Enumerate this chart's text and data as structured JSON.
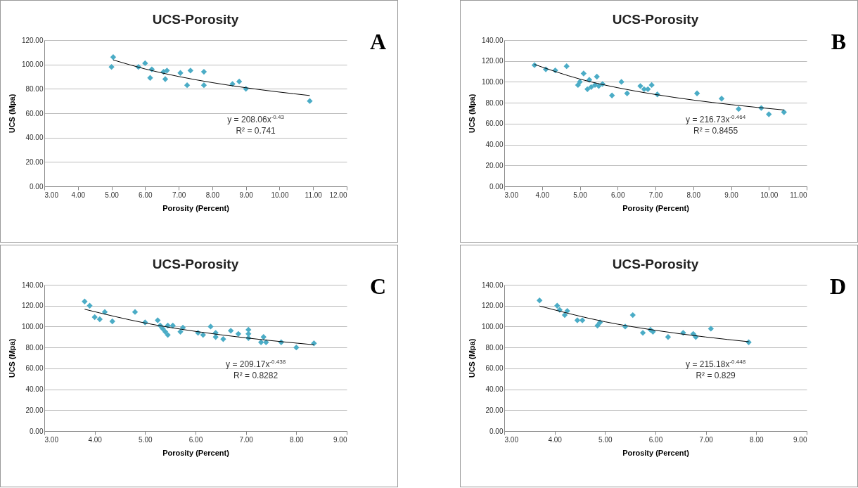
{
  "chart_data": [
    {
      "type": "scatter",
      "title": "UCS-Porosity",
      "xlabel": "Porosity (Percent)",
      "ylabel": "UCS (Mpa)",
      "grid": "y",
      "xlim": [
        3,
        12
      ],
      "xticks": [
        {
          "value": 3,
          "label": "3.00"
        },
        {
          "value": 4,
          "label": "4.00"
        },
        {
          "value": 5,
          "label": "5.00"
        },
        {
          "value": 6,
          "label": "6.00"
        },
        {
          "value": 7,
          "label": "7.00"
        },
        {
          "value": 8,
          "label": "8.00"
        },
        {
          "value": 9,
          "label": "9.00"
        },
        {
          "value": 10,
          "label": "10.00"
        },
        {
          "value": 11,
          "label": "11.00"
        },
        {
          "value": 12,
          "label": "12.00"
        }
      ],
      "ylim": [
        0,
        120
      ],
      "yticks": [
        {
          "value": 0,
          "label": "0.00"
        },
        {
          "value": 20,
          "label": "20.00"
        },
        {
          "value": 40,
          "label": "40.00"
        },
        {
          "value": 60,
          "label": "60.00"
        },
        {
          "value": 80,
          "label": "80.00"
        },
        {
          "value": 100,
          "label": "100.00"
        },
        {
          "value": 120,
          "label": "120.00"
        }
      ],
      "series": [
        {
          "marker": "diamond",
          "color": "#4bacc6",
          "x": [
            5.0,
            5.05,
            5.8,
            6.0,
            6.15,
            6.2,
            6.55,
            6.6,
            6.65,
            7.05,
            7.25,
            7.35,
            7.75,
            7.75,
            8.6,
            8.8,
            9.0,
            10.9
          ],
          "values": [
            98,
            106,
            98,
            101,
            89,
            96,
            94,
            88,
            95,
            93,
            83,
            95,
            83,
            94,
            84,
            86,
            80,
            70
          ]
        },
        {
          "type": "line",
          "color": "#000000",
          "x": [
            5.05,
            6,
            7,
            8,
            9,
            10.9
          ],
          "values": [
            103.7,
            96.3,
            90.1,
            85.1,
            80.9,
            74.5
          ]
        }
      ],
      "annotations": [
        "A",
        "y = 208.06x$^{-0.43}$",
        "R² = 0.741"
      ]
    },
    {
      "type": "scatter",
      "title": "UCS-Porosity",
      "xlabel": "Porosity (Percent)",
      "ylabel": "UCS (Mpa)",
      "grid": "y",
      "xlim": [
        3,
        11
      ],
      "xticks": [
        {
          "value": 3,
          "label": "3.00"
        },
        {
          "value": 4,
          "label": "4.00"
        },
        {
          "value": 5,
          "label": "5.00"
        },
        {
          "value": 6,
          "label": "6.00"
        },
        {
          "value": 7,
          "label": "7.00"
        },
        {
          "value": 8,
          "label": "8.00"
        },
        {
          "value": 9,
          "label": "9.00"
        },
        {
          "value": 10,
          "label": "10.00"
        },
        {
          "value": 11,
          "label": "11.00"
        }
      ],
      "ylim": [
        0,
        140
      ],
      "yticks": [
        {
          "value": 0,
          "label": "0.00"
        },
        {
          "value": 20,
          "label": "20.00"
        },
        {
          "value": 40,
          "label": "40.00"
        },
        {
          "value": 60,
          "label": "60.00"
        },
        {
          "value": 80,
          "label": "80.00"
        },
        {
          "value": 100,
          "label": "100.00"
        },
        {
          "value": 120,
          "label": "120.00"
        },
        {
          "value": 140,
          "label": "140.00"
        }
      ],
      "series": [
        {
          "marker": "diamond",
          "color": "#4bacc6",
          "x": [
            3.8,
            4.1,
            4.35,
            4.65,
            4.95,
            5.0,
            5.1,
            5.2,
            5.25,
            5.3,
            5.4,
            5.45,
            5.5,
            5.6,
            5.85,
            6.1,
            6.25,
            6.6,
            6.7,
            6.8,
            6.9,
            7.05,
            8.1,
            8.75,
            9.2,
            9.8,
            10.0,
            10.4
          ],
          "values": [
            116,
            112,
            111,
            115,
            97,
            100,
            108,
            93,
            102,
            95,
            97,
            105,
            96,
            98,
            87,
            100,
            89,
            96,
            93,
            93,
            97,
            88,
            89,
            84,
            74,
            75,
            69,
            71
          ]
        },
        {
          "type": "line",
          "color": "#000000",
          "x": [
            3.8,
            5,
            6,
            7,
            8,
            9,
            10.4
          ],
          "values": [
            116.7,
            102.7,
            94.4,
            87.9,
            82.6,
            78.2,
            73.1
          ]
        }
      ],
      "annotations": [
        "B",
        "y = 216.73x$^{-0.464}$",
        "R² = 0.8455"
      ]
    },
    {
      "type": "scatter",
      "title": "UCS-Porosity",
      "xlabel": "Porosity (Percent)",
      "ylabel": "UCS (Mpa)",
      "grid": "y",
      "xlim": [
        3,
        9
      ],
      "xticks": [
        {
          "value": 3,
          "label": "3.00"
        },
        {
          "value": 4,
          "label": "4.00"
        },
        {
          "value": 5,
          "label": "5.00"
        },
        {
          "value": 6,
          "label": "6.00"
        },
        {
          "value": 7,
          "label": "7.00"
        },
        {
          "value": 8,
          "label": "8.00"
        },
        {
          "value": 9,
          "label": "9.00"
        }
      ],
      "ylim": [
        0,
        140
      ],
      "yticks": [
        {
          "value": 0,
          "label": "0.00"
        },
        {
          "value": 20,
          "label": "20.00"
        },
        {
          "value": 40,
          "label": "40.00"
        },
        {
          "value": 60,
          "label": "60.00"
        },
        {
          "value": 80,
          "label": "80.00"
        },
        {
          "value": 100,
          "label": "100.00"
        },
        {
          "value": 120,
          "label": "120.00"
        },
        {
          "value": 140,
          "label": "140.00"
        }
      ],
      "series": [
        {
          "marker": "diamond",
          "color": "#4bacc6",
          "x": [
            3.8,
            3.9,
            4.0,
            4.1,
            4.2,
            4.35,
            4.8,
            5.0,
            5.25,
            5.3,
            5.35,
            5.4,
            5.45,
            5.45,
            5.55,
            5.7,
            5.75,
            6.05,
            6.15,
            6.3,
            6.4,
            6.4,
            6.55,
            6.7,
            6.85,
            7.05,
            7.05,
            7.05,
            7.3,
            7.35,
            7.4,
            7.7,
            8.0,
            8.35
          ],
          "values": [
            124,
            120,
            109,
            107,
            114,
            105,
            114,
            104,
            106,
            101,
            98,
            95,
            92,
            101,
            101,
            95,
            99,
            94,
            92,
            100,
            94,
            90,
            88,
            96,
            93,
            97,
            93,
            89,
            85,
            90,
            85,
            85,
            80,
            84
          ]
        },
        {
          "type": "line",
          "color": "#000000",
          "x": [
            3.8,
            5,
            6,
            7,
            8.35
          ],
          "values": [
            116.6,
            103.4,
            95.4,
            89.2,
            82.6
          ]
        }
      ],
      "annotations": [
        "C",
        "y = 209.17x$^{-0.438}$",
        "R² = 0.8282"
      ]
    },
    {
      "type": "scatter",
      "title": "UCS-Porosity",
      "xlabel": "Porosity (Percent)",
      "ylabel": "UCS (Mpa)",
      "grid": "y",
      "xlim": [
        3,
        9
      ],
      "xticks": [
        {
          "value": 3,
          "label": "3.00"
        },
        {
          "value": 4,
          "label": "4.00"
        },
        {
          "value": 5,
          "label": "5.00"
        },
        {
          "value": 6,
          "label": "6.00"
        },
        {
          "value": 7,
          "label": "7.00"
        },
        {
          "value": 8,
          "label": "8.00"
        },
        {
          "value": 9,
          "label": "9.00"
        }
      ],
      "ylim": [
        0,
        140
      ],
      "yticks": [
        {
          "value": 0,
          "label": "0.00"
        },
        {
          "value": 20,
          "label": "20.00"
        },
        {
          "value": 40,
          "label": "40.00"
        },
        {
          "value": 60,
          "label": "60.00"
        },
        {
          "value": 80,
          "label": "80.00"
        },
        {
          "value": 100,
          "label": "100.00"
        },
        {
          "value": 120,
          "label": "120.00"
        },
        {
          "value": 140,
          "label": "140.00"
        }
      ],
      "series": [
        {
          "marker": "diamond",
          "color": "#4bacc6",
          "x": [
            3.7,
            4.05,
            4.1,
            4.2,
            4.25,
            4.45,
            4.55,
            4.85,
            4.9,
            5.4,
            5.55,
            5.75,
            5.9,
            5.95,
            6.25,
            6.55,
            6.75,
            6.8,
            7.1,
            7.85
          ],
          "values": [
            125,
            120,
            116,
            111,
            115,
            106,
            106,
            101,
            104,
            100,
            111,
            94,
            97,
            95,
            90,
            94,
            93,
            90,
            98,
            85
          ]
        },
        {
          "type": "line",
          "color": "#000000",
          "x": [
            3.7,
            5,
            6,
            7,
            7.85
          ],
          "values": [
            119.7,
            104.6,
            96.4,
            90.0,
            85.5
          ]
        }
      ],
      "annotations": [
        "D",
        "y = 215.18x$^{-0.448}$",
        "R² = 0.829"
      ]
    }
  ]
}
